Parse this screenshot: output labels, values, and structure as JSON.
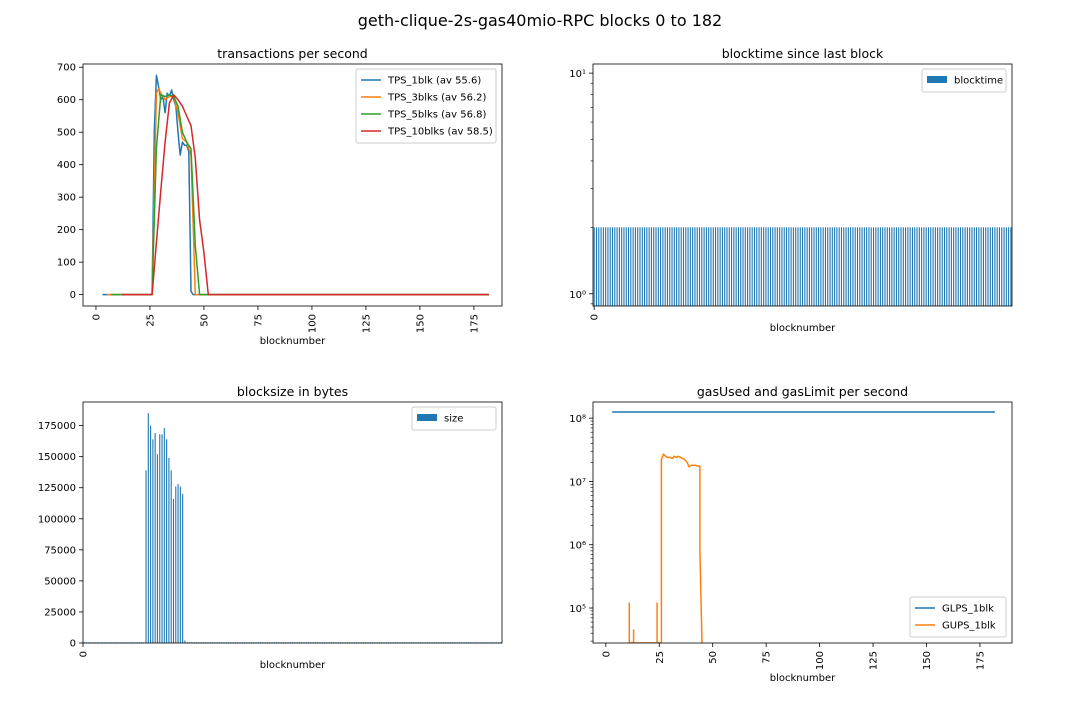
{
  "suptitle": "geth-clique-2s-gas40mio-RPC blocks 0 to 182",
  "colors": {
    "blue": "#1f77b4",
    "orange": "#ff7f0e",
    "green": "#2ca02c",
    "red": "#d62728"
  },
  "chart_data": [
    {
      "type": "line",
      "title": "transactions per second",
      "xlabel": "blocknumber",
      "ylabel": "",
      "xlim": [
        -6,
        188
      ],
      "ylim": [
        -35,
        710
      ],
      "xticks": [
        0,
        25,
        50,
        75,
        100,
        125,
        150,
        175
      ],
      "yticks": [
        0,
        100,
        200,
        300,
        400,
        500,
        600,
        700
      ],
      "legend": "top-right",
      "series": [
        {
          "name": "TPS_1blk (av 55.6)",
          "color": "#1f77b4",
          "x": [
            3,
            10,
            20,
            26,
            27,
            28,
            29,
            30,
            31,
            32,
            33,
            34,
            35,
            36,
            37,
            38,
            39,
            40,
            41,
            42,
            43,
            44,
            45,
            46,
            50,
            60,
            100,
            150,
            182
          ],
          "y": [
            0,
            0,
            0,
            0,
            500,
            675,
            640,
            600,
            610,
            560,
            620,
            610,
            630,
            600,
            580,
            500,
            430,
            470,
            460,
            460,
            440,
            10,
            0,
            0,
            0,
            0,
            0,
            0,
            0
          ]
        },
        {
          "name": "TPS_3blks (av 56.2)",
          "color": "#ff7f0e",
          "x": [
            5,
            20,
            26,
            28,
            29,
            30,
            32,
            34,
            36,
            38,
            40,
            42,
            44,
            45,
            46,
            47,
            50,
            100,
            182
          ],
          "y": [
            0,
            0,
            0,
            620,
            635,
            620,
            600,
            610,
            610,
            560,
            480,
            470,
            430,
            220,
            0,
            0,
            0,
            0,
            0
          ]
        },
        {
          "name": "TPS_5blks (av 56.8)",
          "color": "#2ca02c",
          "x": [
            7,
            20,
            26,
            28,
            30,
            32,
            34,
            36,
            38,
            40,
            42,
            44,
            46,
            48,
            50,
            100,
            182
          ],
          "y": [
            0,
            0,
            0,
            450,
            615,
            610,
            615,
            610,
            580,
            500,
            470,
            450,
            150,
            0,
            0,
            0,
            0
          ]
        },
        {
          "name": "TPS_10blks (av 58.5)",
          "color": "#d62728",
          "x": [
            12,
            20,
            26,
            28,
            30,
            32,
            34,
            36,
            38,
            40,
            42,
            44,
            46,
            48,
            50,
            52,
            54,
            100,
            182
          ],
          "y": [
            0,
            0,
            0,
            160,
            320,
            470,
            590,
            615,
            600,
            580,
            550,
            520,
            420,
            230,
            130,
            0,
            0,
            0,
            0
          ]
        }
      ]
    },
    {
      "type": "bar",
      "title": "blocktime since last block",
      "xlabel": "blocknumber",
      "ylabel": "",
      "yscale": "log",
      "ylim": [
        0.88,
        11
      ],
      "xticks": [
        0
      ],
      "ytick_labels": [
        "10⁰",
        "10¹"
      ],
      "legend": "top-right",
      "series": [
        {
          "name": "blocktime",
          "color": "#1f77b4",
          "value_all_blocks": 2,
          "blocks": [
            0,
            182
          ]
        }
      ]
    },
    {
      "type": "bar",
      "title": "blocksize in bytes",
      "xlabel": "blocknumber",
      "ylabel": "",
      "ylim": [
        0,
        194000
      ],
      "xticks": [
        0
      ],
      "yticks": [
        0,
        25000,
        50000,
        75000,
        100000,
        125000,
        150000,
        175000
      ],
      "legend": "top-right",
      "baseline_value": 600,
      "series": [
        {
          "name": "size",
          "color": "#1f77b4",
          "blocks": [
            27,
            28,
            29,
            30,
            31,
            32,
            33,
            34,
            35,
            36,
            37,
            38,
            39,
            40,
            41,
            42,
            43,
            44
          ],
          "values": [
            139000,
            185000,
            175000,
            164000,
            169000,
            152000,
            168000,
            168000,
            173000,
            164000,
            149000,
            139000,
            116000,
            126000,
            128000,
            126000,
            120000,
            2000
          ]
        }
      ]
    },
    {
      "type": "line",
      "title": "gasUsed and gasLimit per second",
      "xlabel": "blocknumber",
      "ylabel": "",
      "yscale": "log",
      "xlim": [
        -6,
        190
      ],
      "ylim": [
        28000,
        180000000
      ],
      "xticks": [
        0,
        25,
        50,
        75,
        100,
        125,
        150,
        175
      ],
      "ytick_labels": [
        "10⁵",
        "10⁶",
        "10⁷",
        "10⁸"
      ],
      "legend": "bottom-right",
      "series": [
        {
          "name": "GLPS_1blk",
          "color": "#1f77b4",
          "x": [
            3,
            182
          ],
          "y": [
            125000000,
            125000000
          ]
        },
        {
          "name": "GUPS_1blk",
          "color": "#ff7f0e",
          "x": [
            11,
            11,
            11,
            12,
            12,
            12,
            13,
            13,
            13,
            24,
            24,
            24,
            25,
            25,
            25,
            26,
            26,
            27,
            28,
            29,
            30,
            31,
            32,
            33,
            34,
            35,
            36,
            37,
            38,
            39,
            40,
            41,
            42,
            43,
            44,
            44,
            45
          ],
          "y": [
            28000,
            120000,
            28000,
            28000,
            28000,
            28000,
            28000,
            45000,
            28000,
            28000,
            120000,
            28000,
            28000,
            28000,
            28000,
            28000,
            22000000,
            27000000,
            25000000,
            24000000,
            24000000,
            23000000,
            25000000,
            24000000,
            25000000,
            24000000,
            23000000,
            22000000,
            20000000,
            17000000,
            18000000,
            18000000,
            18000000,
            17500000,
            17500000,
            800000,
            28000
          ]
        }
      ]
    }
  ]
}
